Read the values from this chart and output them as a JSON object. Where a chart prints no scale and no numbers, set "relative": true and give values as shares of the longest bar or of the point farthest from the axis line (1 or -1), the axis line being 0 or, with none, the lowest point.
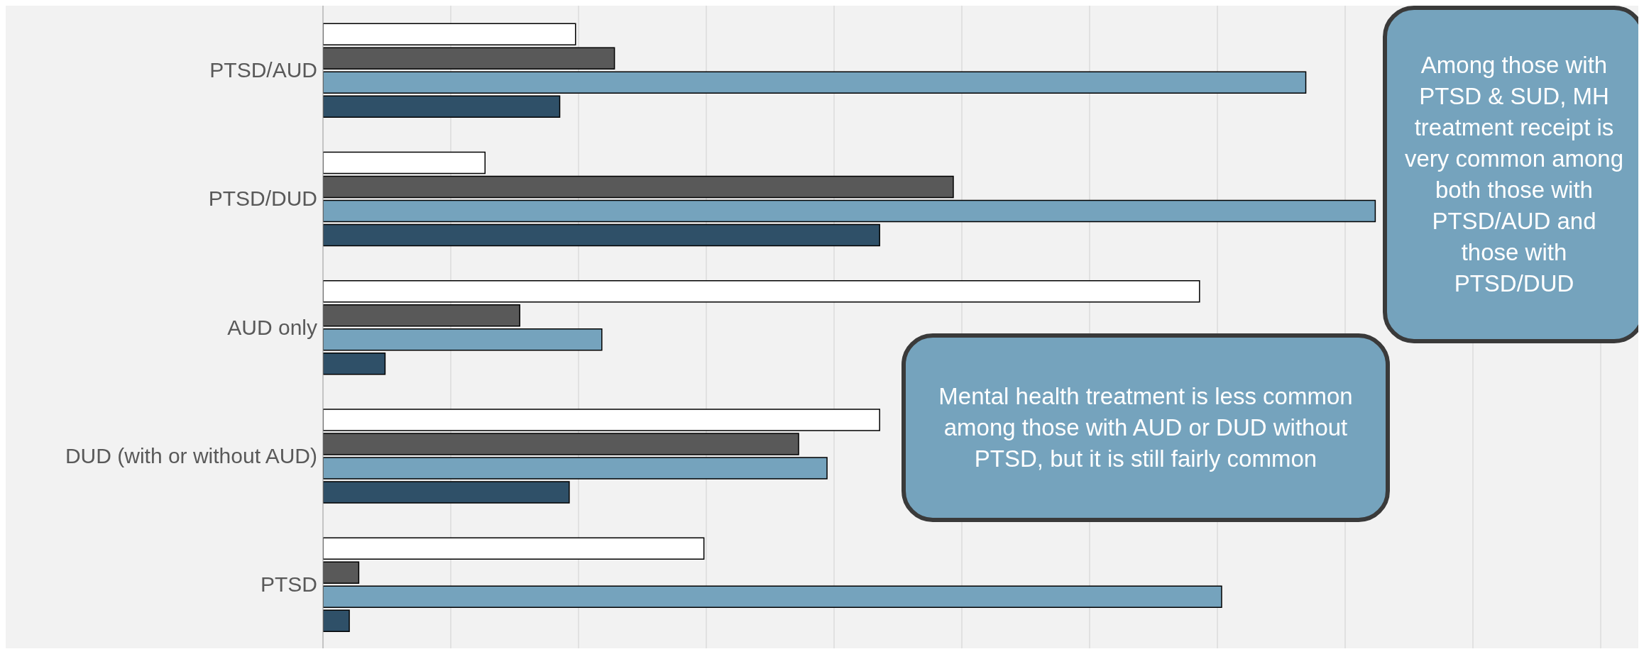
{
  "chart_data": {
    "type": "bar",
    "orientation": "horizontal",
    "relative": true,
    "grid": "x",
    "categories": [
      "PTSD/AUD",
      "PTSD/DUD",
      "AUD only",
      "DUD (with or without AUD)",
      "PTSD"
    ],
    "series": [
      {
        "color": "#ffffff",
        "values": [
          0.24,
          0.154,
          0.833,
          0.529,
          0.362
        ]
      },
      {
        "color": "#595959",
        "values": [
          0.277,
          0.599,
          0.187,
          0.452,
          0.034
        ]
      },
      {
        "color": "#75a3bd",
        "values": [
          0.934,
          1,
          0.265,
          0.479,
          0.854
        ]
      },
      {
        "color": "#2f5068",
        "values": [
          0.225,
          0.529,
          0.059,
          0.234,
          0.025
        ]
      }
    ],
    "annotations": [
      "Among those with PTSD & SUD, MH treatment receipt is very common among both those with PTSD/AUD and those with PTSD/DUD",
      "Mental health treatment is less common among those with AUD or DUD without PTSD, but it is still fairly common"
    ]
  }
}
